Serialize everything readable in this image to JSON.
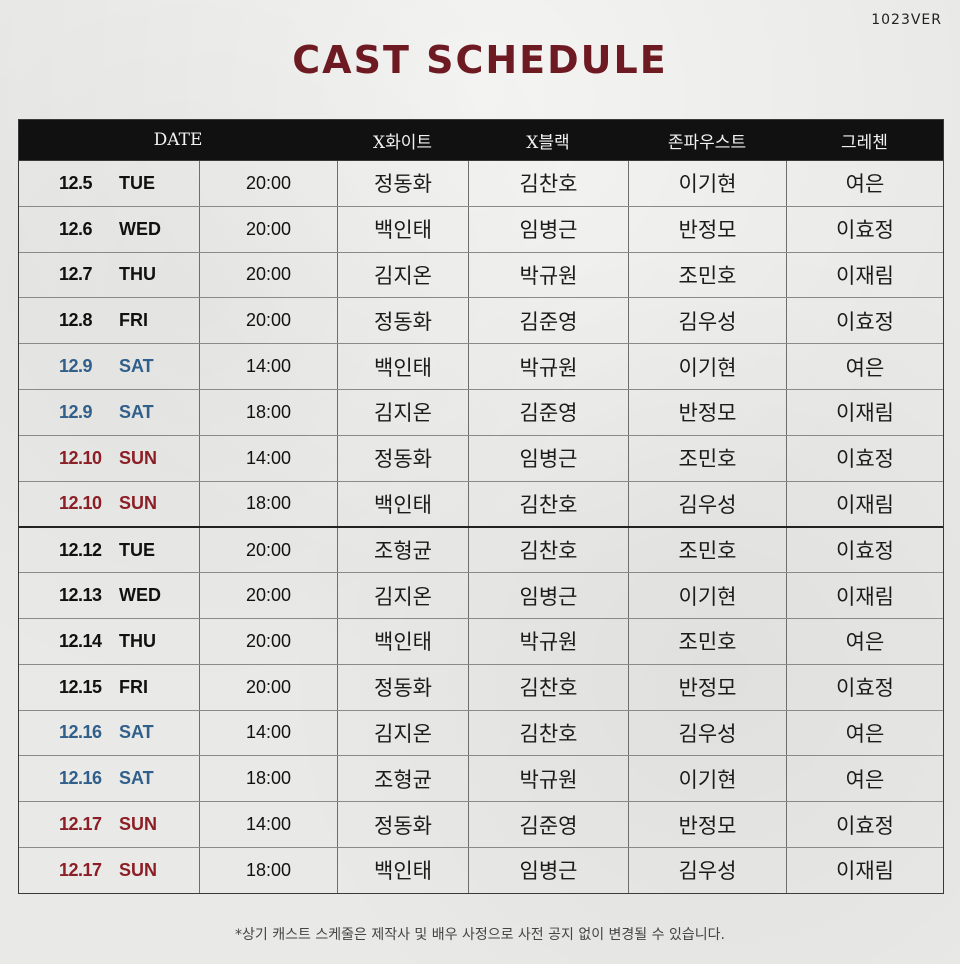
{
  "version": "1023VER",
  "title": "CAST SCHEDULE",
  "headers": {
    "date": "DATE",
    "x_white": "X화이트",
    "x_black": "X블랙",
    "john_faust": "존파우스트",
    "gretchen": "그레첸"
  },
  "rows": [
    {
      "date": "12.5",
      "day": "TUE",
      "time": "20:00",
      "x_white": "정동화",
      "x_black": "김찬호",
      "john_faust": "이기현",
      "gretchen": "여은",
      "type": "weekday"
    },
    {
      "date": "12.6",
      "day": "WED",
      "time": "20:00",
      "x_white": "백인태",
      "x_black": "임병근",
      "john_faust": "반정모",
      "gretchen": "이효정",
      "type": "weekday"
    },
    {
      "date": "12.7",
      "day": "THU",
      "time": "20:00",
      "x_white": "김지온",
      "x_black": "박규원",
      "john_faust": "조민호",
      "gretchen": "이재림",
      "type": "weekday"
    },
    {
      "date": "12.8",
      "day": "FRI",
      "time": "20:00",
      "x_white": "정동화",
      "x_black": "김준영",
      "john_faust": "김우성",
      "gretchen": "이효정",
      "type": "weekday"
    },
    {
      "date": "12.9",
      "day": "SAT",
      "time": "14:00",
      "x_white": "백인태",
      "x_black": "박규원",
      "john_faust": "이기현",
      "gretchen": "여은",
      "type": "sat"
    },
    {
      "date": "12.9",
      "day": "SAT",
      "time": "18:00",
      "x_white": "김지온",
      "x_black": "김준영",
      "john_faust": "반정모",
      "gretchen": "이재림",
      "type": "sat"
    },
    {
      "date": "12.10",
      "day": "SUN",
      "time": "14:00",
      "x_white": "정동화",
      "x_black": "임병근",
      "john_faust": "조민호",
      "gretchen": "이효정",
      "type": "sun"
    },
    {
      "date": "12.10",
      "day": "SUN",
      "time": "18:00",
      "x_white": "백인태",
      "x_black": "김찬호",
      "john_faust": "김우성",
      "gretchen": "이재림",
      "type": "sun"
    },
    {
      "date": "12.12",
      "day": "TUE",
      "time": "20:00",
      "x_white": "조형균",
      "x_black": "김찬호",
      "john_faust": "조민호",
      "gretchen": "이효정",
      "type": "weekday"
    },
    {
      "date": "12.13",
      "day": "WED",
      "time": "20:00",
      "x_white": "김지온",
      "x_black": "임병근",
      "john_faust": "이기현",
      "gretchen": "이재림",
      "type": "weekday"
    },
    {
      "date": "12.14",
      "day": "THU",
      "time": "20:00",
      "x_white": "백인태",
      "x_black": "박규원",
      "john_faust": "조민호",
      "gretchen": "여은",
      "type": "weekday"
    },
    {
      "date": "12.15",
      "day": "FRI",
      "time": "20:00",
      "x_white": "정동화",
      "x_black": "김찬호",
      "john_faust": "반정모",
      "gretchen": "이효정",
      "type": "weekday"
    },
    {
      "date": "12.16",
      "day": "SAT",
      "time": "14:00",
      "x_white": "김지온",
      "x_black": "김찬호",
      "john_faust": "김우성",
      "gretchen": "여은",
      "type": "sat"
    },
    {
      "date": "12.16",
      "day": "SAT",
      "time": "18:00",
      "x_white": "조형균",
      "x_black": "박규원",
      "john_faust": "이기현",
      "gretchen": "여은",
      "type": "sat"
    },
    {
      "date": "12.17",
      "day": "SUN",
      "time": "14:00",
      "x_white": "정동화",
      "x_black": "김준영",
      "john_faust": "반정모",
      "gretchen": "이효정",
      "type": "sun"
    },
    {
      "date": "12.17",
      "day": "SUN",
      "time": "18:00",
      "x_white": "백인태",
      "x_black": "임병근",
      "john_faust": "김우성",
      "gretchen": "이재림",
      "type": "sun"
    }
  ],
  "colors": {
    "title": "#6e1a22",
    "saturday": "#2f5f8a",
    "sunday": "#8c1e26",
    "header_bg": "#111111"
  },
  "footnote": "*상기 캐스트 스케줄은 제작사 및 배우 사정으로 사전 공지 없이 변경될 수 있습니다."
}
